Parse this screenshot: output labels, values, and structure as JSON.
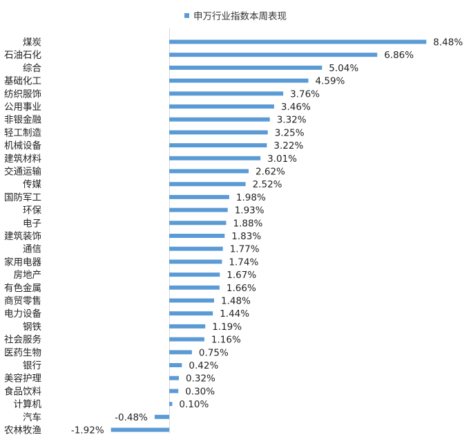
{
  "chart_data": {
    "type": "bar",
    "orientation": "horizontal",
    "legend": {
      "position": "top",
      "label": "申万行业指数本周表现"
    },
    "series": [
      {
        "name": "申万行业指数本周表现",
        "color": "#5b9bd5",
        "categories": [
          "煤炭",
          "石油石化",
          "综合",
          "基础化工",
          "纺织服饰",
          "公用事业",
          "非银金融",
          "轻工制造",
          "机械设备",
          "建筑材料",
          "交通运输",
          "传媒",
          "国防军工",
          "环保",
          "电子",
          "建筑装饰",
          "通信",
          "家用电器",
          "房地产",
          "有色金属",
          "商贸零售",
          "电力设备",
          "钢铁",
          "社会服务",
          "医药生物",
          "银行",
          "美容护理",
          "食品饮料",
          "计算机",
          "汽车",
          "农林牧渔"
        ],
        "values": [
          8.48,
          6.86,
          5.04,
          4.59,
          3.76,
          3.46,
          3.32,
          3.25,
          3.22,
          3.01,
          2.62,
          2.52,
          1.98,
          1.93,
          1.88,
          1.83,
          1.77,
          1.74,
          1.67,
          1.66,
          1.48,
          1.44,
          1.19,
          1.16,
          0.75,
          0.42,
          0.32,
          0.3,
          0.1,
          -0.48,
          -1.92
        ],
        "value_labels": [
          "8.48%",
          "6.86%",
          "5.04%",
          "4.59%",
          "3.76%",
          "3.46%",
          "3.32%",
          "3.25%",
          "3.22%",
          "3.01%",
          "2.62%",
          "2.52%",
          "1.98%",
          "1.93%",
          "1.88%",
          "1.83%",
          "1.77%",
          "1.74%",
          "1.67%",
          "1.66%",
          "1.48%",
          "1.44%",
          "1.19%",
          "1.16%",
          "0.75%",
          "0.42%",
          "0.32%",
          "0.30%",
          "0.10%",
          "-0.48%",
          "-1.92%"
        ]
      }
    ],
    "unit": "%",
    "grid": false,
    "axis_line_color": "#d9d9d9"
  }
}
